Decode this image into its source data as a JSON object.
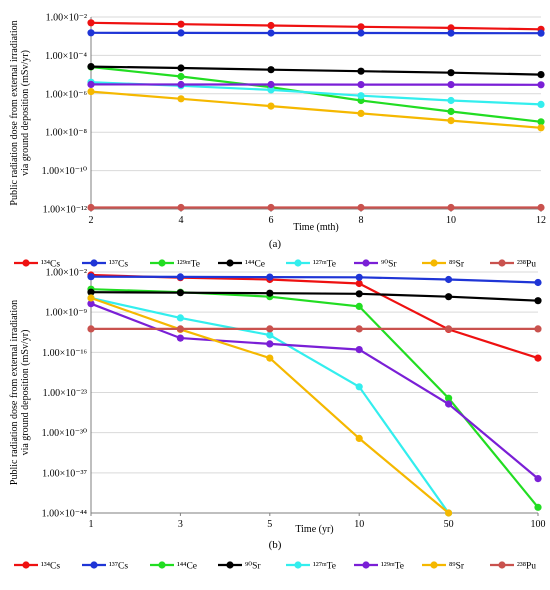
{
  "chart_data": [
    {
      "type": "line",
      "panel_label": "(a)",
      "xlabel": "Time (mth)",
      "ylabel_lines": [
        "Public radiation dose from external irradiation",
        "via ground deposition (mSv/yr)"
      ],
      "y_scale": "log",
      "x": [
        2,
        4,
        6,
        8,
        10,
        12
      ],
      "x_tick_labels": [
        "2",
        "4",
        "6",
        "8",
        "10",
        "12"
      ],
      "y_ticks": [
        {
          "exp": -2,
          "label": "1.00×10⁻²"
        },
        {
          "exp": -4,
          "label": "1.00×10⁻⁴"
        },
        {
          "exp": -6,
          "label": "1.00×10⁻⁶"
        },
        {
          "exp": -8,
          "label": "1.00×10⁻⁸"
        },
        {
          "exp": -10,
          "label": "1.00×10⁻¹⁰"
        },
        {
          "exp": -12,
          "label": "1.00×10⁻¹²"
        }
      ],
      "ylim": [
        1e-12,
        0.01
      ],
      "grid": true,
      "legend_position": "bottom",
      "series": [
        {
          "name": "¹³⁴Cs",
          "color": "#ee1111",
          "values": [
            0.005,
            0.0042,
            0.0036,
            0.0031,
            0.0027,
            0.0023
          ]
        },
        {
          "name": "¹³⁷Cs",
          "color": "#1f35d6",
          "values": [
            0.0015,
            0.00148,
            0.00147,
            0.00146,
            0.00145,
            0.00143
          ]
        },
        {
          "name": "¹²⁹ᵐTe",
          "color": "#22dd22",
          "values": [
            2.5e-05,
            8e-06,
            2.2e-06,
            4.5e-07,
            1.2e-07,
            3.5e-08
          ]
        },
        {
          "name": "¹⁴⁴Ce",
          "color": "#000000",
          "values": [
            2.6e-05,
            2.2e-05,
            1.8e-05,
            1.5e-05,
            1.25e-05,
            1e-05
          ]
        },
        {
          "name": "¹²⁷ᵐTe",
          "color": "#33eeee",
          "values": [
            4e-06,
            2.6e-06,
            1.6e-06,
            8e-07,
            4.5e-07,
            2.8e-07
          ]
        },
        {
          "name": "⁹⁰Sr",
          "color": "#7a1fd6",
          "values": [
            3.1e-06,
            3.05e-06,
            3.05e-06,
            3e-06,
            3e-06,
            2.95e-06
          ]
        },
        {
          "name": "⁸⁹Sr",
          "color": "#f5b800",
          "values": [
            1.3e-06,
            5.5e-07,
            2.3e-07,
            9.5e-08,
            4e-08,
            1.7e-08
          ]
        },
        {
          "name": "²³⁸Pu",
          "color": "#c9524e",
          "values": [
            1.2e-12,
            1.2e-12,
            1.2e-12,
            1.2e-12,
            1.2e-12,
            1.2e-12
          ]
        }
      ]
    },
    {
      "type": "line",
      "panel_label": "(b)",
      "xlabel": "Time (yr)",
      "ylabel_lines": [
        "Public radiation dose from external irradiation",
        "via ground deposition (mSv/yr)"
      ],
      "y_scale": "log",
      "x": [
        1,
        3,
        5,
        10,
        50,
        100
      ],
      "x_tick_labels": [
        "1",
        "3",
        "5",
        "10",
        "50",
        "100"
      ],
      "y_ticks": [
        {
          "exp": -2,
          "label": "1.00×10⁻²"
        },
        {
          "exp": -9,
          "label": "1.00×10⁻⁹"
        },
        {
          "exp": -16,
          "label": "1.00×10⁻¹⁶"
        },
        {
          "exp": -23,
          "label": "1.00×10⁻²³"
        },
        {
          "exp": -30,
          "label": "1.00×10⁻³⁰"
        },
        {
          "exp": -37,
          "label": "1.00×10⁻³⁷"
        },
        {
          "exp": -44,
          "label": "1.00×10⁻⁴⁴"
        }
      ],
      "ylim": [
        1e-44,
        0.01
      ],
      "grid": true,
      "legend_position": "bottom",
      "series": [
        {
          "name": "¹³⁴Cs",
          "color": "#ee1111",
          "values": [
            0.003,
            0.001,
            0.0005,
            0.0001,
            1e-12,
            1e-17
          ]
        },
        {
          "name": "¹³⁷Cs",
          "color": "#1f35d6",
          "values": [
            0.0015,
            0.0014,
            0.0013,
            0.0012,
            0.0005,
            0.00015
          ]
        },
        {
          "name": "¹⁴⁴Ce",
          "color": "#22dd22",
          "values": [
            1e-05,
            3e-06,
            5e-07,
            1e-08,
            1e-24,
            1e-43
          ]
        },
        {
          "name": "⁹⁰Sr",
          "color": "#000000",
          "values": [
            3e-06,
            2.5e-06,
            2e-06,
            1.6e-06,
            5e-07,
            1e-07
          ]
        },
        {
          "name": "¹²⁷ᵐTe",
          "color": "#33eeee",
          "values": [
            3e-07,
            1e-10,
            1e-13,
            1e-22,
            1e-44,
            null
          ]
        },
        {
          "name": "¹²⁹ᵐTe",
          "color": "#7a1fd6",
          "values": [
            3e-08,
            3e-14,
            3e-15,
            3e-16,
            1e-25,
            1e-38
          ]
        },
        {
          "name": "⁸⁹Sr",
          "color": "#f5b800",
          "values": [
            3e-07,
            1e-12,
            1e-17,
            1e-31,
            1e-44,
            null
          ]
        },
        {
          "name": "²³⁸Pu",
          "color": "#c9524e",
          "values": [
            1.2e-12,
            1.2e-12,
            1.2e-12,
            1.2e-12,
            1.2e-12,
            1.2e-12
          ]
        }
      ]
    }
  ]
}
